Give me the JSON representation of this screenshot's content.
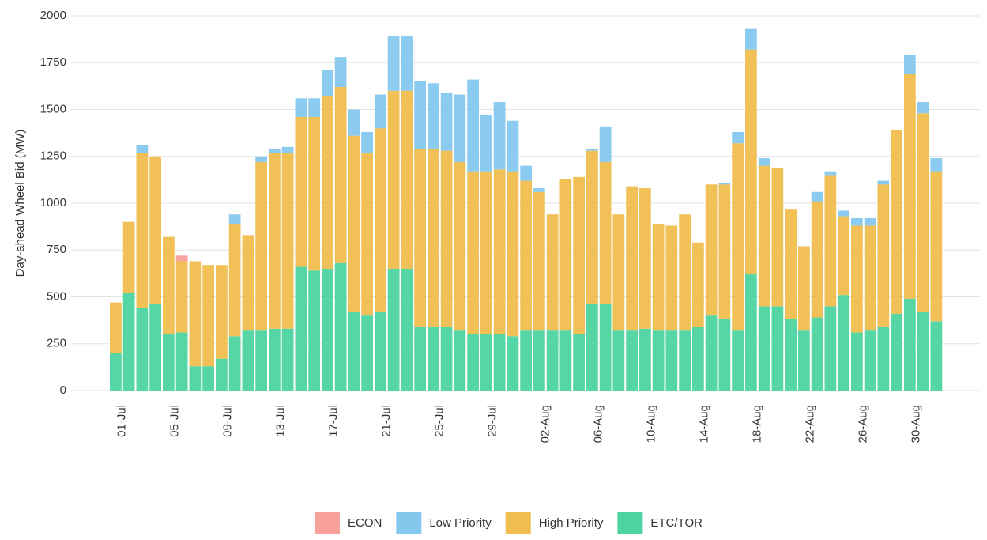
{
  "chart_data": {
    "type": "stacked_bar",
    "ylabel": "Day-ahead Wheel Bid (MW)",
    "categories": [
      null,
      "01-Jul",
      null,
      null,
      null,
      "05-Jul",
      null,
      null,
      null,
      "09-Jul",
      null,
      null,
      null,
      "13-Jul",
      null,
      null,
      null,
      "17-Jul",
      null,
      null,
      null,
      "21-Jul",
      null,
      null,
      null,
      "25-Jul",
      null,
      null,
      null,
      "29-Jul",
      null,
      null,
      null,
      "02-Aug",
      null,
      null,
      null,
      "06-Aug",
      null,
      null,
      null,
      "10-Aug",
      null,
      null,
      null,
      "14-Aug",
      null,
      null,
      null,
      "18-Aug",
      null,
      null,
      null,
      "22-Aug",
      null,
      null,
      null,
      "26-Aug",
      null,
      null,
      null,
      "30-Aug",
      null
    ],
    "series": [
      {
        "name": "ECON",
        "color": "#f8a09a",
        "values": [
          0,
          0,
          0,
          0,
          0,
          30,
          0,
          0,
          0,
          0,
          0,
          0,
          0,
          0,
          0,
          0,
          0,
          0,
          0,
          0,
          0,
          0,
          0,
          0,
          0,
          0,
          0,
          0,
          0,
          0,
          0,
          0,
          0,
          0,
          0,
          0,
          0,
          0,
          0,
          0,
          0,
          0,
          0,
          0,
          0,
          0,
          0,
          0,
          0,
          0,
          0,
          0,
          0,
          0,
          0,
          0,
          0,
          0,
          0,
          0,
          0,
          0,
          0
        ]
      },
      {
        "name": "Low Priority",
        "color": "#85c8ee",
        "values": [
          0,
          0,
          40,
          0,
          0,
          0,
          0,
          0,
          0,
          50,
          0,
          30,
          20,
          30,
          100,
          100,
          140,
          160,
          140,
          110,
          180,
          290,
          290,
          360,
          350,
          310,
          360,
          490,
          300,
          360,
          270,
          80,
          20,
          0,
          0,
          0,
          10,
          190,
          0,
          0,
          0,
          0,
          0,
          0,
          0,
          0,
          10,
          60,
          110,
          40,
          0,
          0,
          0,
          50,
          20,
          30,
          40,
          40,
          20,
          0,
          100,
          60,
          70
        ]
      },
      {
        "name": "High Priority",
        "color": "#f0bd4e",
        "values": [
          270,
          380,
          830,
          790,
          520,
          380,
          560,
          540,
          500,
          600,
          510,
          900,
          940,
          940,
          800,
          820,
          920,
          940,
          940,
          870,
          980,
          950,
          950,
          950,
          950,
          940,
          900,
          870,
          870,
          880,
          880,
          800,
          740,
          620,
          810,
          840,
          820,
          760,
          620,
          770,
          750,
          570,
          560,
          620,
          450,
          700,
          720,
          1000,
          1200,
          750,
          740,
          590,
          450,
          620,
          700,
          420,
          570,
          560,
          760,
          980,
          1200,
          1060,
          800
        ]
      },
      {
        "name": "ETC/TOR",
        "color": "#4dd4a0",
        "values": [
          200,
          520,
          440,
          460,
          300,
          310,
          130,
          130,
          170,
          290,
          320,
          320,
          330,
          330,
          660,
          640,
          650,
          680,
          420,
          400,
          420,
          650,
          650,
          340,
          340,
          340,
          320,
          300,
          300,
          300,
          290,
          320,
          320,
          320,
          320,
          300,
          460,
          460,
          320,
          320,
          330,
          320,
          320,
          320,
          340,
          400,
          380,
          320,
          620,
          450,
          450,
          380,
          320,
          390,
          450,
          510,
          310,
          320,
          340,
          410,
          490,
          420,
          370
        ]
      }
    ],
    "ylim": [
      0,
      2000
    ],
    "yticks": [
      0,
      250,
      500,
      750,
      1000,
      1250,
      1500,
      1750,
      2000
    ],
    "grid": true,
    "legend": "bottom"
  }
}
